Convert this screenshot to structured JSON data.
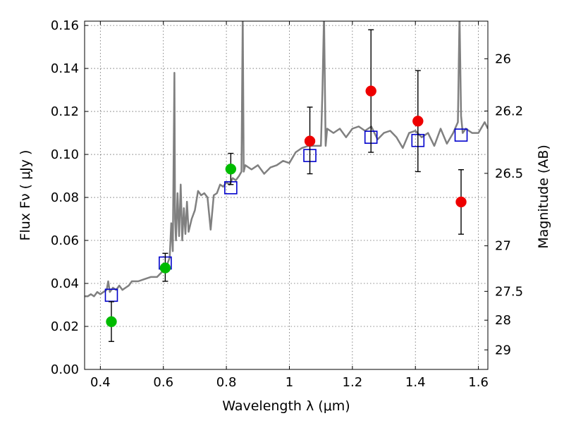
{
  "chart_data": {
    "type": "scatter",
    "xlabel": "Wavelength  λ (μm)",
    "ylabel": "Flux  Fν  ( μJy )",
    "ylabel_right": "Magnitude (AB)",
    "xlim": [
      0.35,
      1.63
    ],
    "ylim": [
      0.0,
      0.162
    ],
    "grid": true,
    "x_ticks": [
      0.4,
      0.6,
      0.8,
      1.0,
      1.2,
      1.4,
      1.6
    ],
    "x_tick_labels": [
      "0.4",
      "0.6",
      "0.8",
      "1",
      "1.2",
      "1.4",
      "1.6"
    ],
    "y_ticks": [
      0.0,
      0.02,
      0.04,
      0.06,
      0.08,
      0.1,
      0.12,
      0.14,
      0.16
    ],
    "y_tick_labels": [
      "0.00",
      "0.02",
      "0.04",
      "0.06",
      "0.08",
      "0.10",
      "0.12",
      "0.14",
      "0.16"
    ],
    "right_axis_ticks": [
      {
        "label": "26",
        "flux": 0.1445
      },
      {
        "label": "26.2",
        "flux": 0.1202
      },
      {
        "label": "26.5",
        "flux": 0.0912
      },
      {
        "label": "27",
        "flux": 0.0575
      },
      {
        "label": "27.5",
        "flux": 0.0363
      },
      {
        "label": "28",
        "flux": 0.0229
      },
      {
        "label": "29",
        "flux": 0.0091
      }
    ],
    "series": [
      {
        "marker": "line",
        "color": "#808080",
        "x": [
          0.35,
          0.36,
          0.37,
          0.38,
          0.39,
          0.4,
          0.41,
          0.42,
          0.425,
          0.43,
          0.44,
          0.45,
          0.46,
          0.47,
          0.48,
          0.49,
          0.5,
          0.52,
          0.54,
          0.56,
          0.58,
          0.6,
          0.61,
          0.62,
          0.625,
          0.63,
          0.635,
          0.637,
          0.64,
          0.645,
          0.65,
          0.655,
          0.66,
          0.665,
          0.67,
          0.675,
          0.68,
          0.69,
          0.7,
          0.71,
          0.72,
          0.73,
          0.74,
          0.75,
          0.76,
          0.77,
          0.78,
          0.79,
          0.8,
          0.81,
          0.82,
          0.83,
          0.84,
          0.848,
          0.852,
          0.855,
          0.86,
          0.87,
          0.88,
          0.9,
          0.92,
          0.94,
          0.96,
          0.98,
          1.0,
          1.02,
          1.04,
          1.06,
          1.08,
          1.1,
          1.105,
          1.11,
          1.115,
          1.12,
          1.14,
          1.16,
          1.18,
          1.2,
          1.22,
          1.24,
          1.26,
          1.28,
          1.3,
          1.32,
          1.34,
          1.36,
          1.38,
          1.4,
          1.42,
          1.44,
          1.46,
          1.48,
          1.5,
          1.52,
          1.535,
          1.54,
          1.545,
          1.55,
          1.56,
          1.58,
          1.6,
          1.62,
          1.63
        ],
        "y": [
          0.034,
          0.034,
          0.035,
          0.034,
          0.036,
          0.035,
          0.036,
          0.037,
          0.041,
          0.036,
          0.038,
          0.037,
          0.039,
          0.037,
          0.038,
          0.039,
          0.041,
          0.041,
          0.042,
          0.043,
          0.043,
          0.046,
          0.048,
          0.052,
          0.068,
          0.055,
          0.138,
          0.07,
          0.06,
          0.082,
          0.062,
          0.086,
          0.06,
          0.075,
          0.063,
          0.078,
          0.064,
          0.07,
          0.074,
          0.083,
          0.081,
          0.082,
          0.08,
          0.065,
          0.081,
          0.082,
          0.086,
          0.085,
          0.087,
          0.086,
          0.089,
          0.088,
          0.09,
          0.092,
          0.165,
          0.092,
          0.095,
          0.094,
          0.093,
          0.095,
          0.091,
          0.094,
          0.095,
          0.097,
          0.096,
          0.101,
          0.103,
          0.104,
          0.104,
          0.104,
          0.13,
          0.165,
          0.104,
          0.112,
          0.11,
          0.112,
          0.108,
          0.112,
          0.113,
          0.111,
          0.113,
          0.107,
          0.11,
          0.111,
          0.108,
          0.103,
          0.11,
          0.111,
          0.108,
          0.11,
          0.104,
          0.112,
          0.105,
          0.11,
          0.115,
          0.165,
          0.118,
          0.11,
          0.112,
          0.11,
          0.11,
          0.115,
          0.112
        ]
      },
      {
        "marker": "open-square",
        "color": "#0000cc",
        "x": [
          0.435,
          0.606,
          0.814,
          1.065,
          1.259,
          1.408,
          1.545
        ],
        "y": [
          0.0345,
          0.0495,
          0.0845,
          0.0995,
          0.108,
          0.1065,
          0.109
        ]
      },
      {
        "marker": "filled-circle",
        "color": "#00bb00",
        "x": [
          0.435,
          0.606,
          0.814
        ],
        "y": [
          0.0222,
          0.0472,
          0.0932
        ],
        "err_low": [
          0.0092,
          0.0062,
          0.0072
        ],
        "err_high": [
          0.0093,
          0.0068,
          0.0073
        ]
      },
      {
        "marker": "filled-circle",
        "color": "#ee0000",
        "x": [
          1.065,
          1.259,
          1.408,
          1.545
        ],
        "y": [
          0.1062,
          0.1295,
          0.1155,
          0.0779
        ],
        "err_low": [
          0.0152,
          0.0285,
          0.0235,
          0.015
        ],
        "err_high": [
          0.0158,
          0.0285,
          0.0235,
          0.015
        ]
      }
    ]
  }
}
